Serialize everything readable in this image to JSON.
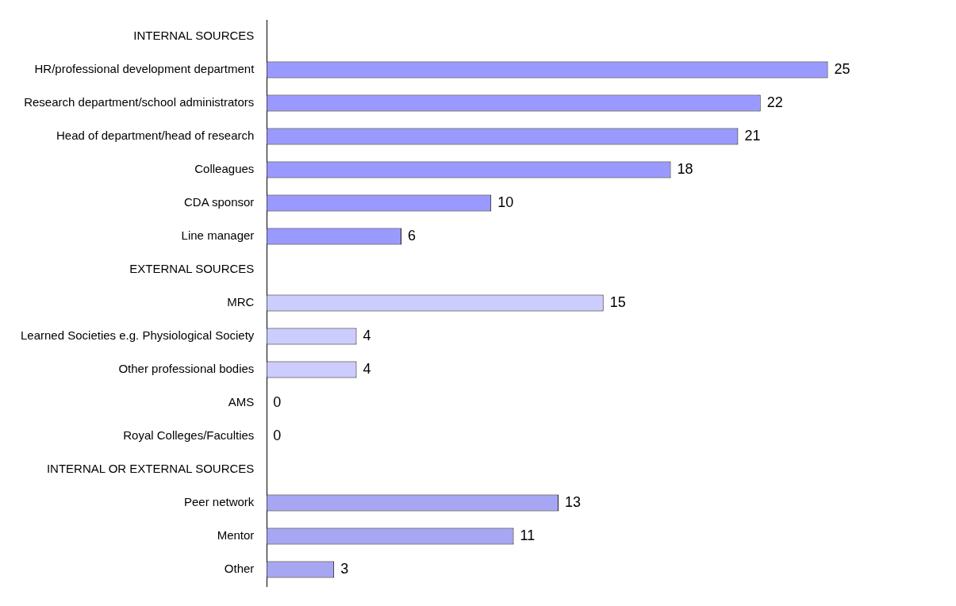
{
  "chart_data": {
    "type": "bar",
    "orientation": "horizontal",
    "tick_labels": "y",
    "data_labels": true,
    "categories": [
      "INTERNAL SOURCES",
      "HR/professional development department",
      "Research department/school administrators",
      "Head of department/head of research",
      "Colleagues",
      "CDA sponsor",
      "Line manager",
      "EXTERNAL SOURCES",
      "MRC",
      "Learned Societies e.g. Physiological Society",
      "Other professional bodies",
      "AMS",
      "Royal Colleges/Faculties",
      "INTERNAL OR EXTERNAL SOURCES",
      "Peer network",
      "Mentor",
      "Other"
    ],
    "values": [
      null,
      25,
      22,
      21,
      18,
      10,
      6,
      null,
      15,
      4,
      4,
      0,
      0,
      null,
      13,
      11,
      3
    ],
    "colors": [
      "#9999ff",
      "#9999ff",
      "#9999ff",
      "#9999ff",
      "#9999ff",
      "#9999ff",
      "#9999ff",
      "#ccccff",
      "#ccccff",
      "#ccccff",
      "#ccccff",
      "#ccccff",
      "#ccccff",
      "#a6a6f2",
      "#a6a6f2",
      "#a6a6f2",
      "#a6a6f2"
    ]
  }
}
